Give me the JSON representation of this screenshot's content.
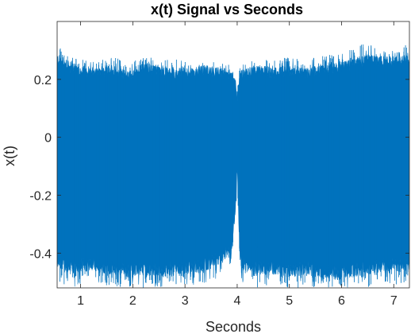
{
  "chart_data": {
    "type": "line",
    "title": "x(t) Signal vs Seconds",
    "xlabel": "Seconds",
    "ylabel": "x(t)",
    "xlim": [
      0.55,
      7.3
    ],
    "ylim": [
      -0.52,
      0.4
    ],
    "xticks": [
      1,
      2,
      3,
      4,
      5,
      6,
      7
    ],
    "xtick_labels": [
      "1",
      "2",
      "3",
      "4",
      "5",
      "6",
      "7"
    ],
    "yticks": [
      0.2,
      0,
      -0.2,
      -0.4
    ],
    "ytick_labels": [
      "0.2",
      "0",
      "-0.2",
      "-0.4"
    ],
    "grid": false,
    "series": [
      {
        "color": "#0072BD",
        "x": [
          0.55,
          0.8,
          1.0,
          1.3,
          1.6,
          1.9,
          2.2,
          2.5,
          2.8,
          3.1,
          3.4,
          3.7,
          3.9,
          3.97,
          4.0,
          4.05,
          4.1,
          4.4,
          4.7,
          5.0,
          5.3,
          5.6,
          5.9,
          6.2,
          6.5,
          6.8,
          7.1,
          7.3
        ],
        "upper": [
          0.27,
          0.24,
          0.23,
          0.22,
          0.23,
          0.21,
          0.24,
          0.23,
          0.22,
          0.22,
          0.23,
          0.22,
          0.22,
          0.18,
          0.13,
          0.2,
          0.22,
          0.23,
          0.22,
          0.23,
          0.22,
          0.23,
          0.24,
          0.25,
          0.27,
          0.26,
          0.26,
          0.27
        ],
        "lower": [
          -0.43,
          -0.45,
          -0.44,
          -0.44,
          -0.45,
          -0.46,
          -0.45,
          -0.46,
          -0.45,
          -0.45,
          -0.44,
          -0.41,
          -0.38,
          -0.22,
          -0.1,
          -0.4,
          -0.44,
          -0.45,
          -0.45,
          -0.46,
          -0.45,
          -0.46,
          -0.47,
          -0.46,
          -0.45,
          -0.44,
          -0.44,
          -0.44
        ],
        "upper_extreme": [
          0.32,
          0.28,
          0.27,
          0.26,
          0.28,
          0.26,
          0.28,
          0.27,
          0.27,
          0.26,
          0.27,
          0.26,
          0.25,
          0.22,
          0.16,
          0.24,
          0.26,
          0.27,
          0.27,
          0.28,
          0.27,
          0.28,
          0.29,
          0.31,
          0.33,
          0.3,
          0.3,
          0.33
        ],
        "lower_extreme": [
          -0.5,
          -0.52,
          -0.51,
          -0.5,
          -0.52,
          -0.52,
          -0.52,
          -0.52,
          -0.51,
          -0.51,
          -0.51,
          -0.48,
          -0.45,
          -0.3,
          -0.14,
          -0.47,
          -0.51,
          -0.52,
          -0.52,
          -0.52,
          -0.52,
          -0.52,
          -0.52,
          -0.52,
          -0.52,
          -0.5,
          -0.51,
          -0.52
        ]
      }
    ]
  }
}
